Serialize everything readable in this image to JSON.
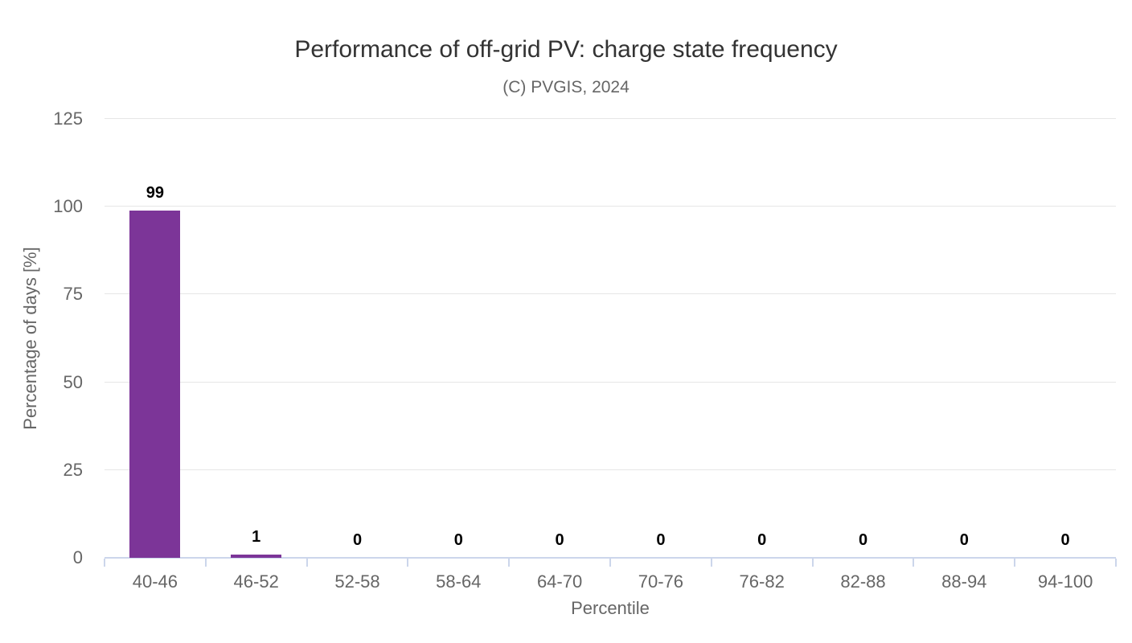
{
  "chart_data": {
    "type": "bar",
    "title": "Performance of off-grid PV: charge state frequency",
    "subtitle": "(C) PVGIS, 2024",
    "categories": [
      "40-46",
      "46-52",
      "52-58",
      "58-64",
      "64-70",
      "70-76",
      "76-82",
      "82-88",
      "88-94",
      "94-100"
    ],
    "values": [
      99,
      1,
      0,
      0,
      0,
      0,
      0,
      0,
      0,
      0
    ],
    "xlabel": "Percentile",
    "ylabel": "Percentage of days [%]",
    "ylim": [
      0,
      125
    ],
    "y_ticks": [
      0,
      25,
      50,
      75,
      100,
      125
    ],
    "grid": "horizontal-only",
    "legend": "none",
    "data_labels_visible": true,
    "colors": {
      "bar": "#7c3598",
      "grid_line": "#e6e6e6",
      "axis_line": "#ccd6eb",
      "tick_mark": "#ccd6eb",
      "axis_label": "#666666",
      "axis_title": "#666666",
      "title": "#333333",
      "subtitle": "#666666",
      "data_label": "#000000",
      "background": "#ffffff"
    }
  }
}
